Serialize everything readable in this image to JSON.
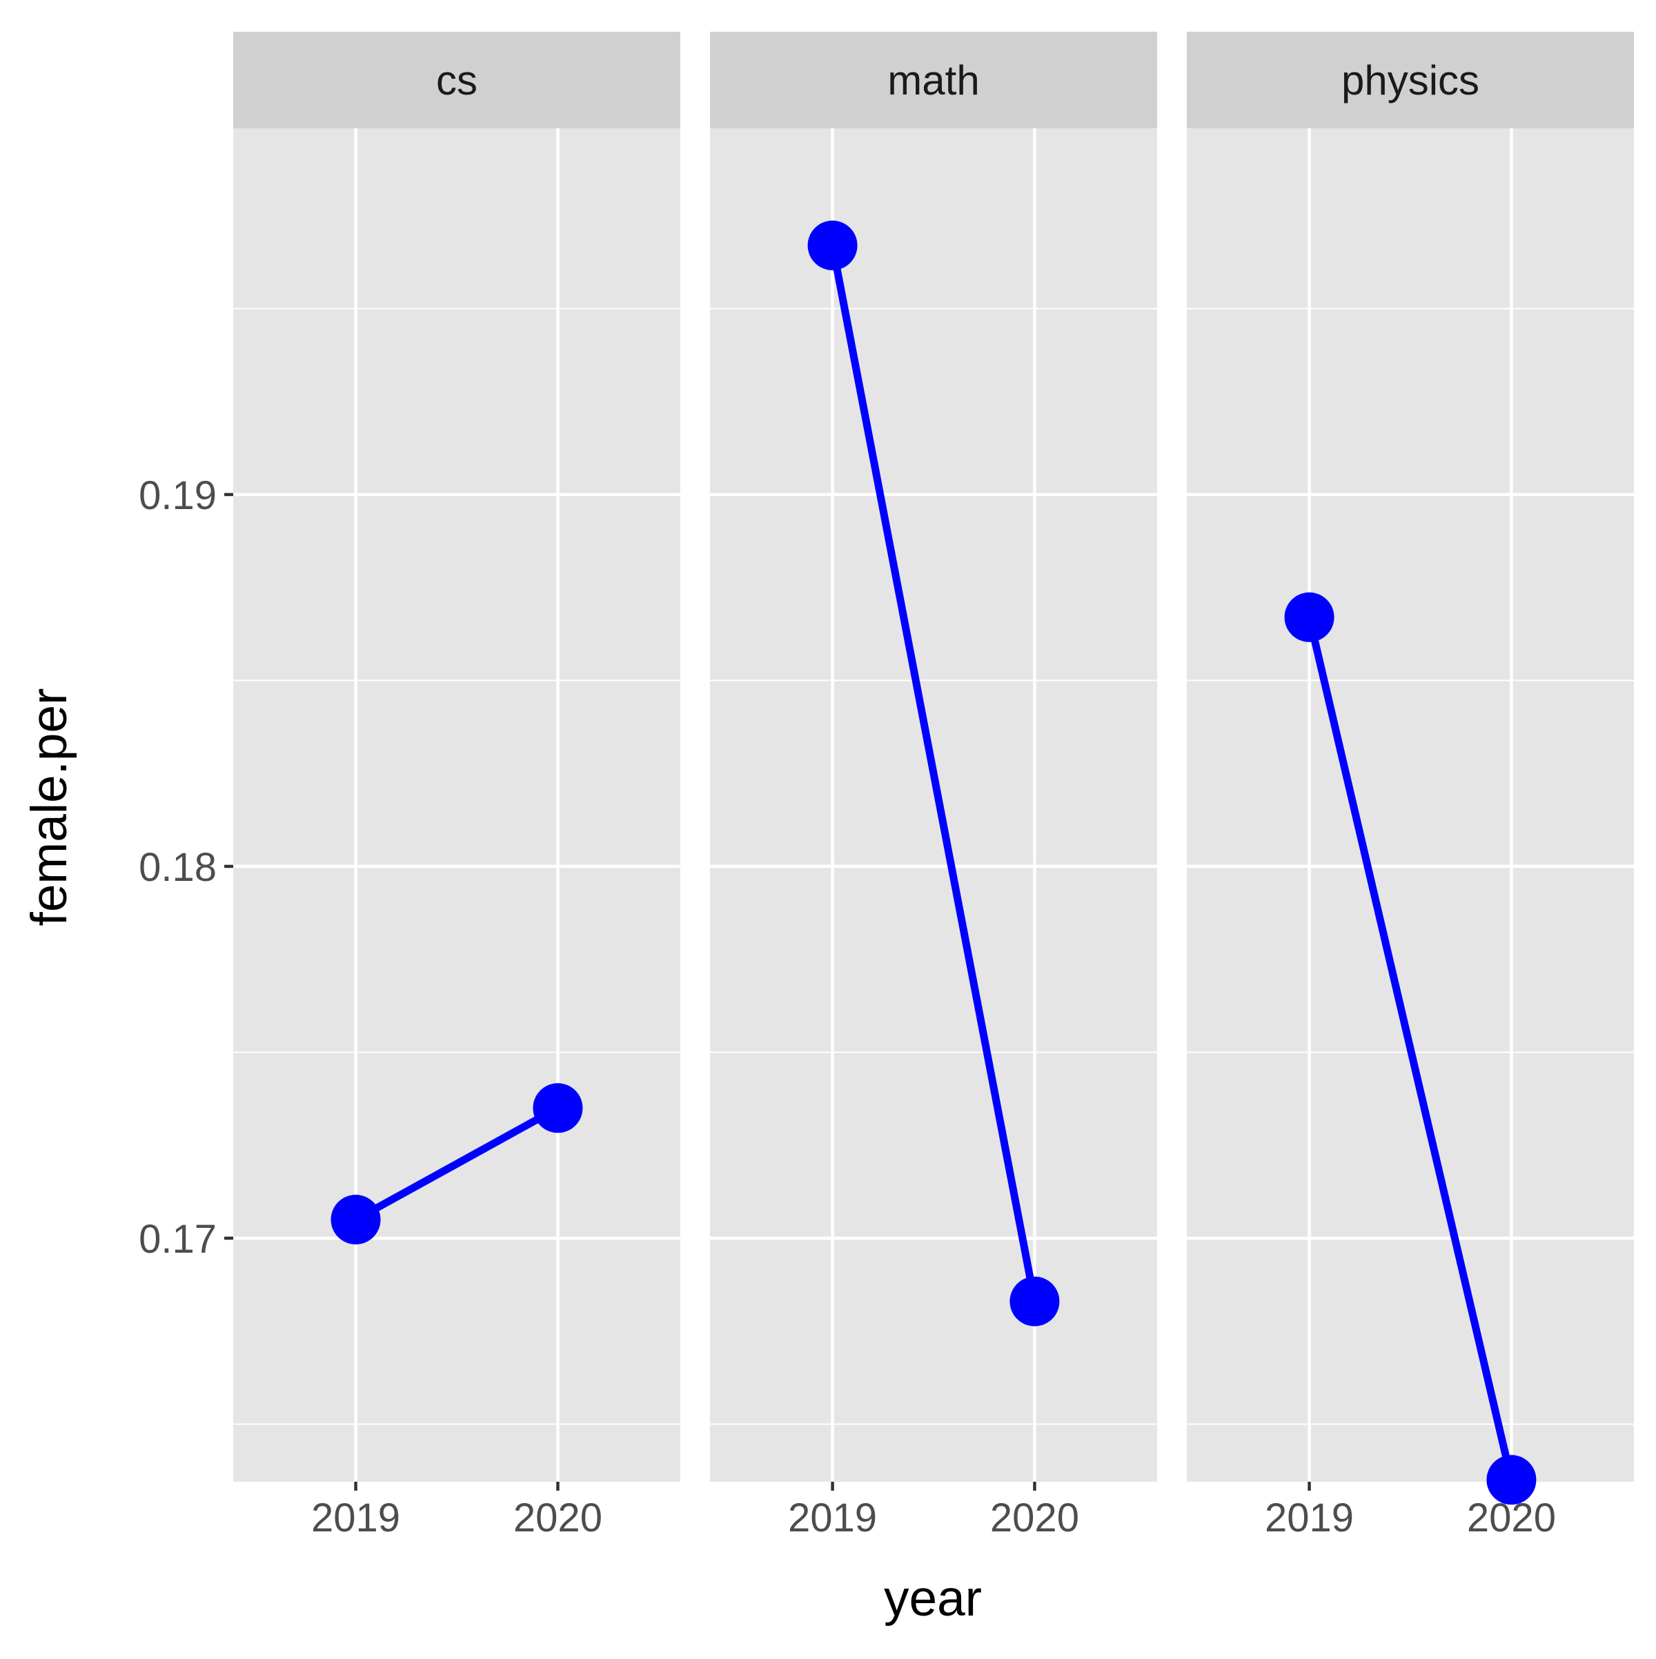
{
  "chart_data": {
    "type": "line",
    "facet_by": "subject",
    "xlabel": "year",
    "ylabel": "female.per",
    "x_categories": [
      "2019",
      "2020"
    ],
    "ylim": [
      0.16345,
      0.19985
    ],
    "y_ticks": [
      0.17,
      0.18,
      0.19
    ],
    "y_tick_labels": [
      "0.17",
      "0.18",
      "0.19"
    ],
    "grid": true,
    "legend": "none",
    "colors": {
      "series": "#0000ff",
      "panel_background": "#e5e5e5",
      "strip_background": "#d0d0d0",
      "grid": "#ffffff"
    },
    "facets": [
      {
        "label": "cs",
        "values": [
          0.1705,
          0.1735
        ]
      },
      {
        "label": "math",
        "values": [
          0.1967,
          0.1683
        ]
      },
      {
        "label": "physics",
        "values": [
          0.1867,
          0.1635
        ]
      }
    ]
  }
}
